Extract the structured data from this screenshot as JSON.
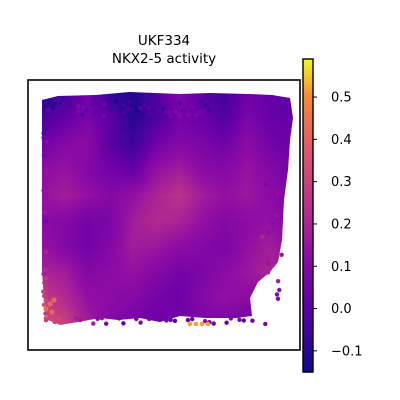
{
  "chart_data": {
    "type": "heatmap",
    "title_lines": [
      "UKF334",
      "NKX2-5 activity"
    ],
    "colormap": "plasma",
    "colorbar": {
      "min": -0.15,
      "max": 0.59,
      "ticks": [
        -0.1,
        0.0,
        0.1,
        0.2,
        0.3,
        0.4,
        0.5
      ],
      "tick_labels": [
        "−0.1",
        "0.0",
        "0.1",
        "0.2",
        "0.3",
        "0.4",
        "0.5"
      ]
    },
    "xticks": [],
    "yticks": [],
    "value_field": [
      [
        -0.1,
        -0.05,
        0.05,
        -0.08,
        -0.12,
        -0.02,
        0.1,
        0.0,
        -0.06,
        0.05,
        0.02,
        0.0
      ],
      [
        -0.04,
        0.02,
        0.08,
        0.0,
        -0.1,
        -0.04,
        0.06,
        0.04,
        -0.02,
        0.08,
        0.03,
        0.02
      ],
      [
        0.05,
        0.1,
        0.12,
        0.0,
        -0.06,
        0.05,
        0.1,
        0.08,
        0.05,
        0.12,
        0.06,
        0.04
      ],
      [
        0.12,
        0.15,
        0.1,
        0.06,
        0.02,
        0.14,
        0.18,
        0.12,
        0.1,
        0.15,
        0.1,
        0.06
      ],
      [
        0.15,
        0.18,
        0.14,
        0.1,
        0.14,
        0.2,
        0.25,
        0.18,
        0.14,
        0.16,
        0.12,
        0.08
      ],
      [
        0.12,
        0.1,
        0.06,
        0.08,
        0.18,
        0.22,
        0.2,
        0.14,
        0.1,
        0.12,
        0.14,
        0.1
      ],
      [
        0.15,
        0.1,
        0.06,
        0.1,
        0.18,
        0.16,
        0.12,
        0.1,
        0.08,
        0.14,
        0.18,
        0.12
      ],
      [
        0.2,
        0.18,
        0.1,
        0.12,
        0.14,
        0.1,
        0.06,
        0.08,
        0.12,
        0.16,
        0.2,
        0.15
      ],
      [
        0.28,
        0.22,
        0.14,
        0.12,
        0.1,
        0.06,
        0.04,
        0.1,
        0.14,
        0.12,
        0.1,
        0.08
      ],
      [
        0.35,
        0.3,
        0.18,
        0.1,
        0.06,
        0.04,
        0.06,
        0.08,
        0.06,
        0.04,
        0.05,
        0.06
      ]
    ],
    "highlights": [
      {
        "value": 0.52,
        "label": "yellow cluster bottom-center"
      },
      {
        "value": 0.42,
        "label": "orange cluster bottom-left"
      }
    ]
  }
}
